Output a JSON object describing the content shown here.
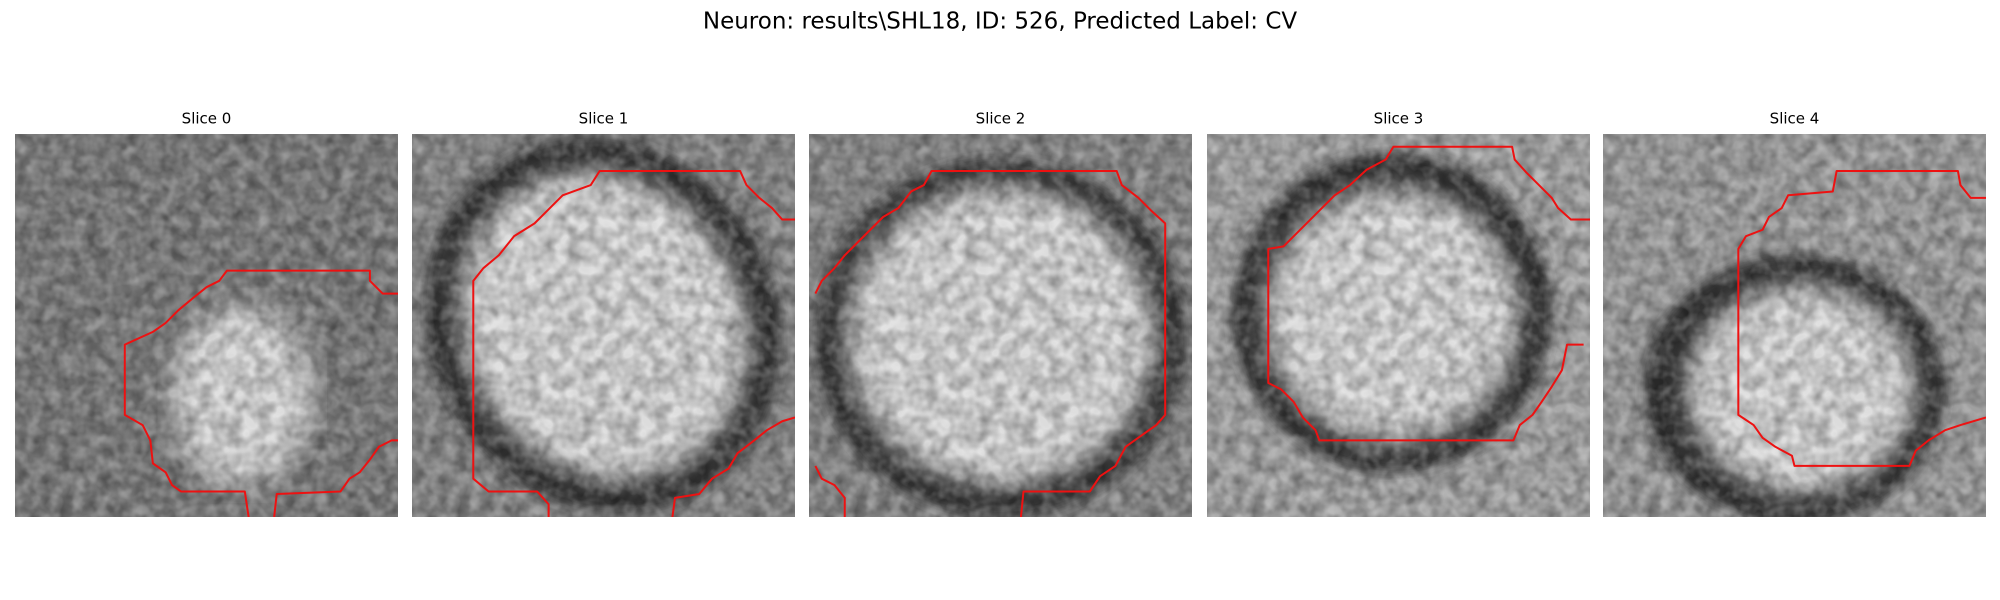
{
  "title": "Neuron: results\\SHL18, ID: 526, Predicted Label: CV",
  "panels": [
    {
      "title": "Slice 0"
    },
    {
      "title": "Slice 1"
    },
    {
      "title": "Slice 2"
    },
    {
      "title": "Slice 3"
    },
    {
      "title": "Slice 4"
    }
  ]
}
